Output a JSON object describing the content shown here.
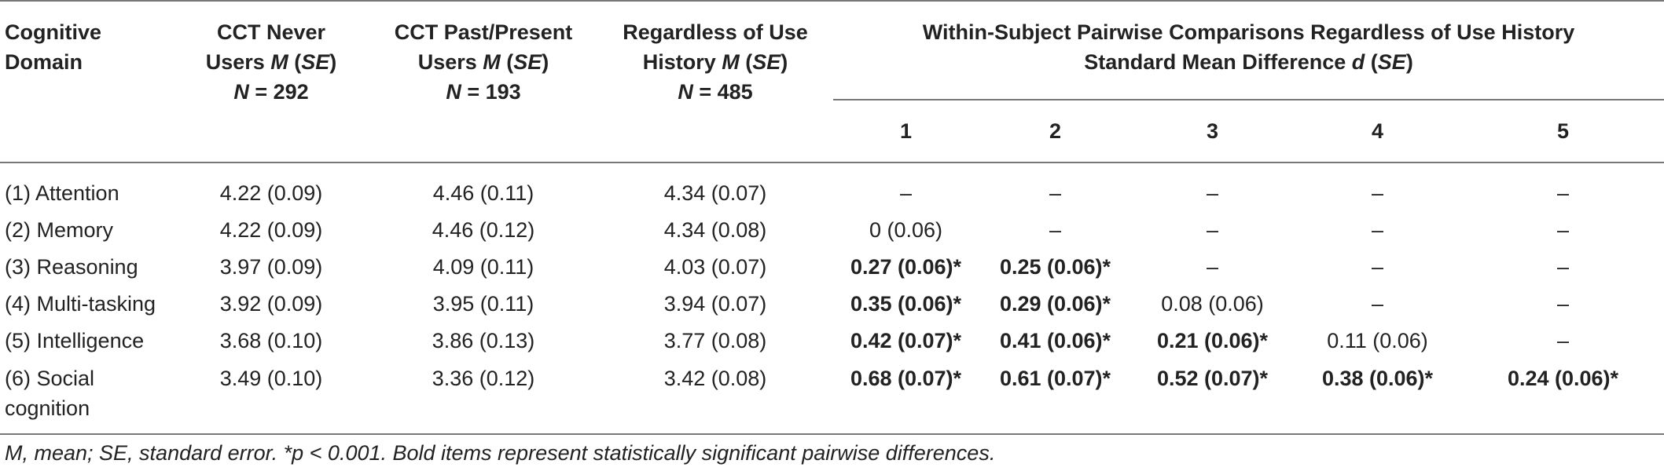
{
  "header": {
    "col0": [
      "Cognitive",
      "Domain"
    ],
    "col1": [
      "CCT Never",
      "Users ",
      "M",
      " (",
      "SE",
      ")",
      "N",
      " = 292"
    ],
    "col2": [
      "CCT Past/Present",
      "Users ",
      "M",
      " (",
      "SE",
      ")",
      "N",
      " = 193"
    ],
    "col3": [
      "Regardless of Use",
      "History ",
      "M",
      " (",
      "SE",
      ")",
      "N",
      " = 485"
    ],
    "group_line1": "Within-Subject Pairwise Comparisons Regardless of Use History",
    "group_line2_pre": "Standard Mean Difference ",
    "group_line2_d": "d",
    "group_line2_open": " (",
    "group_line2_se": "SE",
    "group_line2_close": ")",
    "sub": [
      "1",
      "2",
      "3",
      "4",
      "5"
    ]
  },
  "rows": [
    {
      "domain": [
        "(1) Attention"
      ],
      "never": "4.22 (0.09)",
      "past": "4.46 (0.11)",
      "all": "4.34 (0.07)",
      "pairs": [
        {
          "v": "–",
          "b": false
        },
        {
          "v": "–",
          "b": false
        },
        {
          "v": "–",
          "b": false
        },
        {
          "v": "–",
          "b": false
        },
        {
          "v": "–",
          "b": false
        }
      ]
    },
    {
      "domain": [
        "(2) Memory"
      ],
      "never": "4.22 (0.09)",
      "past": "4.46 (0.12)",
      "all": "4.34 (0.08)",
      "pairs": [
        {
          "v": "0 (0.06)",
          "b": false
        },
        {
          "v": "–",
          "b": false
        },
        {
          "v": "–",
          "b": false
        },
        {
          "v": "–",
          "b": false
        },
        {
          "v": "–",
          "b": false
        }
      ]
    },
    {
      "domain": [
        "(3) Reasoning"
      ],
      "never": "3.97 (0.09)",
      "past": "4.09 (0.11)",
      "all": "4.03 (0.07)",
      "pairs": [
        {
          "v": "0.27 (0.06)*",
          "b": true
        },
        {
          "v": "0.25 (0.06)*",
          "b": true
        },
        {
          "v": "–",
          "b": false
        },
        {
          "v": "–",
          "b": false
        },
        {
          "v": "–",
          "b": false
        }
      ]
    },
    {
      "domain": [
        "(4) Multi-tasking"
      ],
      "never": "3.92 (0.09)",
      "past": "3.95 (0.11)",
      "all": "3.94 (0.07)",
      "pairs": [
        {
          "v": "0.35 (0.06)*",
          "b": true
        },
        {
          "v": "0.29 (0.06)*",
          "b": true
        },
        {
          "v": "0.08 (0.06)",
          "b": false
        },
        {
          "v": "–",
          "b": false
        },
        {
          "v": "–",
          "b": false
        }
      ]
    },
    {
      "domain": [
        "(5) Intelligence"
      ],
      "never": "3.68 (0.10)",
      "past": "3.86 (0.13)",
      "all": "3.77 (0.08)",
      "pairs": [
        {
          "v": "0.42 (0.07)*",
          "b": true
        },
        {
          "v": "0.41 (0.06)*",
          "b": true
        },
        {
          "v": "0.21 (0.06)*",
          "b": true
        },
        {
          "v": "0.11 (0.06)",
          "b": false
        },
        {
          "v": "–",
          "b": false
        }
      ]
    },
    {
      "domain": [
        "(6) Social",
        "cognition"
      ],
      "never": "3.49 (0.10)",
      "past": "3.36 (0.12)",
      "all": "3.42 (0.08)",
      "pairs": [
        {
          "v": "0.68 (0.07)*",
          "b": true
        },
        {
          "v": "0.61 (0.07)*",
          "b": true
        },
        {
          "v": "0.52 (0.07)*",
          "b": true
        },
        {
          "v": "0.38 (0.06)*",
          "b": true
        },
        {
          "v": "0.24 (0.06)*",
          "b": true
        }
      ]
    }
  ],
  "note": "M, mean; SE, standard error. *p < 0.001. Bold items represent statistically significant pairwise differences."
}
